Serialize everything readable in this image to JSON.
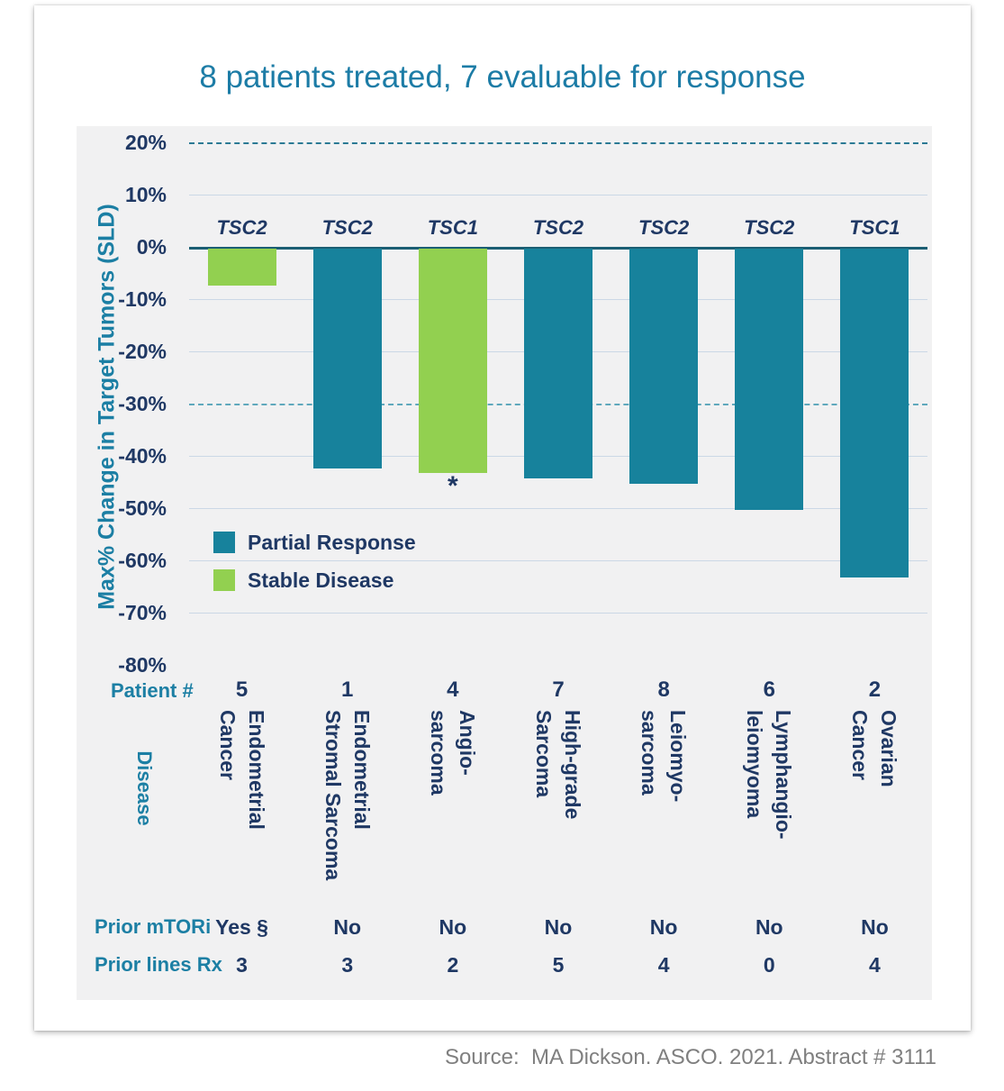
{
  "title": "8 patients treated, 7 evaluable for response",
  "source": "Source:  MA Dickson. ASCO. 2021. Abstract # 3111",
  "colors": {
    "title_teal": "#1C7CA6",
    "label_teal": "#1C7FA4",
    "navy": "#1F3864",
    "teal_bar": "#17829C",
    "green_bar": "#92D050",
    "grid_light": "#CBD8E6",
    "axis_dark": "#1B5E73",
    "dash_dark": "#2B7A94",
    "dash_light": "#5FA8BC",
    "panel_bg": "#F1F1F2",
    "source_gray": "#7F7F7F"
  },
  "chart_data": {
    "type": "bar",
    "title": "8 patients treated, 7 evaluable for response",
    "ylabel": "Max% Change in Target Tumors (SLD)",
    "ylim": [
      -80,
      20
    ],
    "grid": true,
    "legend_position": "inside-left",
    "yticks": [
      {
        "label": "20%",
        "value": 20,
        "line": "dashed-dark"
      },
      {
        "label": "10%",
        "value": 10,
        "line": "light"
      },
      {
        "label": "0%",
        "value": 0,
        "line": "solid-dark"
      },
      {
        "label": "-10%",
        "value": -10,
        "line": "light"
      },
      {
        "label": "-20%",
        "value": -20,
        "line": "light"
      },
      {
        "label": "-30%",
        "value": -30,
        "line": "dashed-light"
      },
      {
        "label": "-40%",
        "value": -40,
        "line": "light"
      },
      {
        "label": "-50%",
        "value": -50,
        "line": "light"
      },
      {
        "label": "-60%",
        "value": -60,
        "line": "light"
      },
      {
        "label": "-70%",
        "value": -70,
        "line": "light"
      },
      {
        "label": "-80%",
        "value": -80,
        "line": "none"
      }
    ],
    "legend": [
      {
        "label": "Partial Response",
        "color": "#17829C"
      },
      {
        "label": "Stable Disease",
        "color": "#92D050"
      }
    ],
    "row_labels": {
      "patient": "Patient #",
      "disease": "Disease",
      "prior_mtori": "Prior mTORi",
      "prior_lines_rx": "Prior lines Rx"
    },
    "patients": [
      {
        "patient": "5",
        "mutation": "TSC2",
        "value": -7,
        "response": "Stable Disease",
        "disease_lines": [
          "Endometrial",
          "Cancer"
        ],
        "prior_mtori": "Yes §",
        "prior_lines_rx": "3",
        "footnote": ""
      },
      {
        "patient": "1",
        "mutation": "TSC2",
        "value": -42,
        "response": "Partial Response",
        "disease_lines": [
          "Endometrial",
          "Stromal Sarcoma"
        ],
        "prior_mtori": "No",
        "prior_lines_rx": "3",
        "footnote": ""
      },
      {
        "patient": "4",
        "mutation": "TSC1",
        "value": -43,
        "response": "Stable Disease",
        "disease_lines": [
          "Angio-",
          "sarcoma"
        ],
        "prior_mtori": "No",
        "prior_lines_rx": "2",
        "footnote": "*"
      },
      {
        "patient": "7",
        "mutation": "TSC2",
        "value": -44,
        "response": "Partial Response",
        "disease_lines": [
          "High-grade",
          "Sarcoma"
        ],
        "prior_mtori": "No",
        "prior_lines_rx": "5",
        "footnote": ""
      },
      {
        "patient": "8",
        "mutation": "TSC2",
        "value": -45,
        "response": "Partial Response",
        "disease_lines": [
          "Leiomyo-",
          "sarcoma"
        ],
        "prior_mtori": "No",
        "prior_lines_rx": "4",
        "footnote": ""
      },
      {
        "patient": "6",
        "mutation": "TSC2",
        "value": -50,
        "response": "Partial Response",
        "disease_lines": [
          "Lymphangio-",
          "leiomyoma"
        ],
        "prior_mtori": "No",
        "prior_lines_rx": "0",
        "footnote": ""
      },
      {
        "patient": "2",
        "mutation": "TSC1",
        "value": -63,
        "response": "Partial Response",
        "disease_lines": [
          "Ovarian",
          "Cancer"
        ],
        "prior_mtori": "No",
        "prior_lines_rx": "4",
        "footnote": ""
      }
    ]
  }
}
